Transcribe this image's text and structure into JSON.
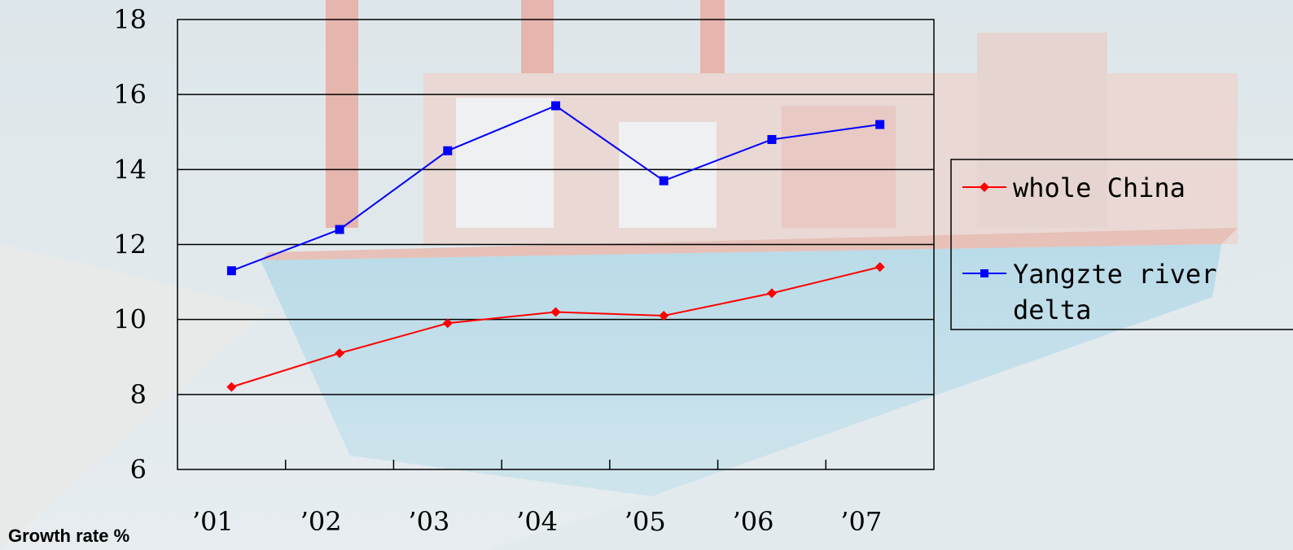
{
  "chart_data": {
    "type": "line",
    "categories": [
      "’01",
      "’02",
      "’03",
      "’04",
      "’05",
      "’06",
      "’07"
    ],
    "series": [
      {
        "name": "whole China",
        "color": "#ff0000",
        "marker": "diamond",
        "values": [
          8.2,
          9.1,
          9.9,
          10.2,
          10.1,
          10.7,
          11.4
        ]
      },
      {
        "name": "Yangzte river delta",
        "color": "#0000ff",
        "marker": "square",
        "values": [
          11.3,
          12.4,
          14.5,
          15.7,
          13.7,
          14.8,
          15.2
        ]
      }
    ],
    "ylabel": "Growth rate %",
    "ylim": [
      6,
      18
    ],
    "yticks": [
      6,
      8,
      10,
      12,
      14,
      16,
      18
    ],
    "grid": true,
    "legend_position": "right",
    "background": "photo of container ship at port (washed out)"
  },
  "legend": {
    "series_1_label": "whole China",
    "series_2_label_line1": "Yangzte river",
    "series_2_label_line2": "delta"
  }
}
